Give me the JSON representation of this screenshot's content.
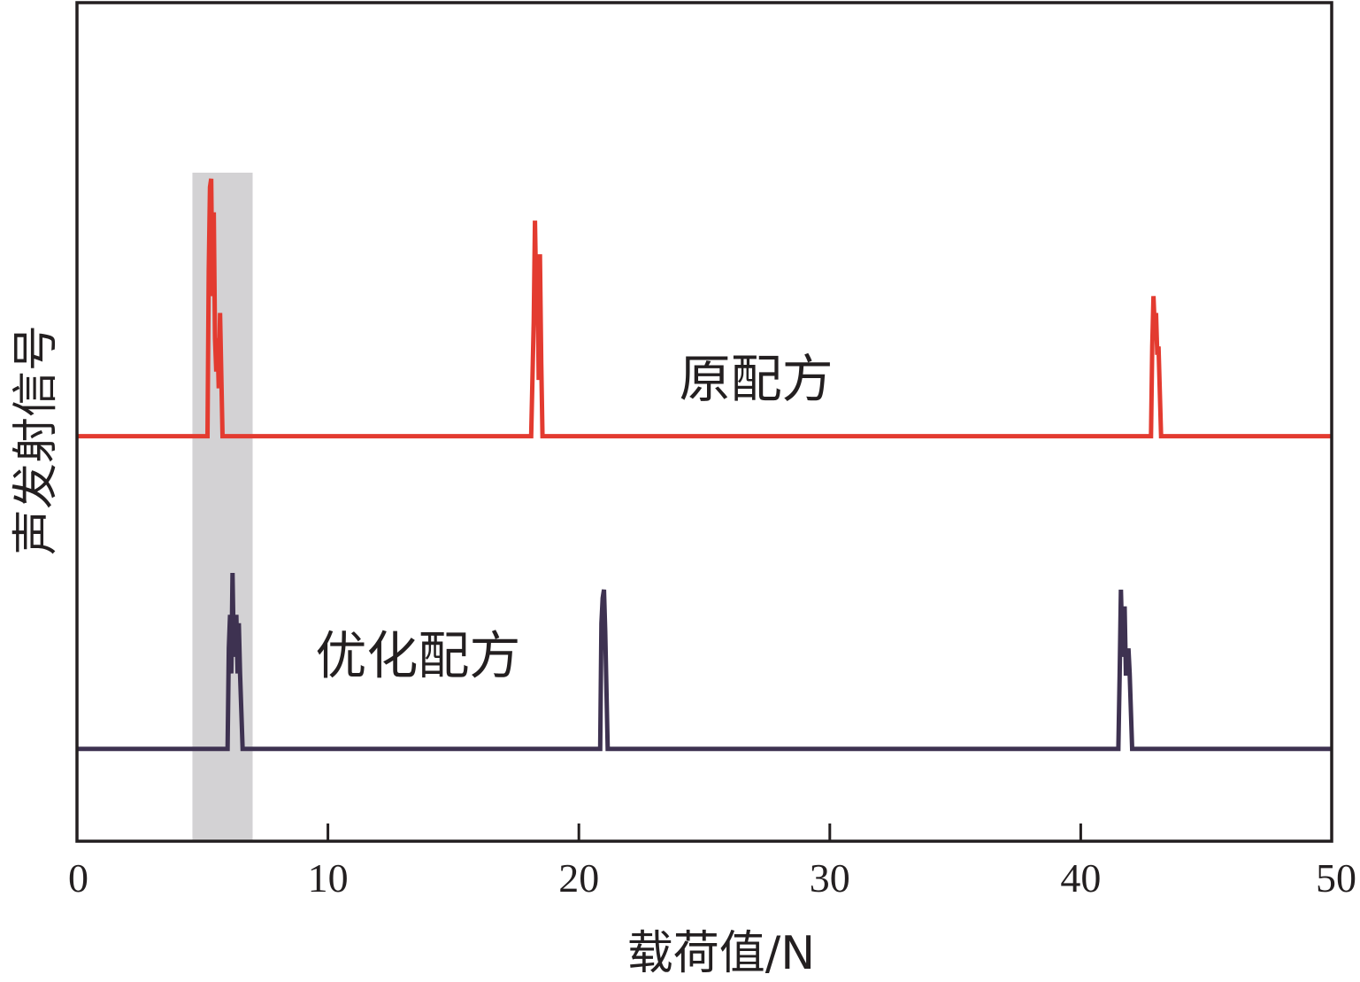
{
  "chart_data": {
    "type": "line",
    "title": "",
    "xlabel": "载荷值/N",
    "ylabel": "声发射信号",
    "xlim": [
      0,
      50
    ],
    "ylim": [
      0,
      1
    ],
    "xticks": [
      0,
      10,
      20,
      30,
      40,
      50
    ],
    "yticks": [],
    "grid": false,
    "legend": "none",
    "highlight_band": {
      "x": [
        4.6,
        7.0
      ],
      "color": "#d3d2d4"
    },
    "series": [
      {
        "name": "原配方",
        "color": "#e33b30",
        "baseline": 0.483,
        "label_at": [
          24,
          0.53
        ],
        "x": [
          0,
          5.2,
          5.25,
          5.3,
          5.35,
          5.4,
          5.45,
          5.5,
          5.55,
          5.6,
          5.65,
          5.7,
          5.8,
          5.85,
          18.1,
          18.2,
          18.25,
          18.3,
          18.35,
          18.4,
          18.45,
          18.5,
          18.55,
          18.65,
          42.8,
          42.85,
          42.9,
          42.95,
          43.0,
          43.05,
          43.1,
          43.2,
          43.25,
          50
        ],
        "y": [
          0.483,
          0.483,
          0.68,
          0.78,
          0.79,
          0.65,
          0.75,
          0.6,
          0.56,
          0.6,
          0.54,
          0.63,
          0.483,
          0.483,
          0.483,
          0.62,
          0.74,
          0.65,
          0.69,
          0.55,
          0.7,
          0.57,
          0.483,
          0.483,
          0.483,
          0.59,
          0.65,
          0.61,
          0.63,
          0.58,
          0.59,
          0.483,
          0.483,
          0.483
        ]
      },
      {
        "name": "优化配方",
        "color": "#3e3251",
        "baseline": 0.11,
        "label_at": [
          9.5,
          0.2
        ],
        "x": [
          0,
          6.0,
          6.05,
          6.1,
          6.15,
          6.2,
          6.25,
          6.3,
          6.35,
          6.4,
          6.45,
          6.5,
          6.6,
          6.65,
          20.85,
          20.9,
          20.95,
          21.0,
          21.05,
          21.15,
          21.2,
          21.25,
          41.5,
          41.55,
          41.6,
          41.65,
          41.7,
          41.75,
          41.8,
          41.85,
          41.9,
          41.95,
          42.05,
          42.1,
          50
        ],
        "y": [
          0.11,
          0.11,
          0.23,
          0.27,
          0.2,
          0.32,
          0.22,
          0.25,
          0.27,
          0.2,
          0.26,
          0.2,
          0.11,
          0.11,
          0.11,
          0.26,
          0.29,
          0.3,
          0.25,
          0.11,
          0.11,
          0.11,
          0.11,
          0.2,
          0.3,
          0.24,
          0.22,
          0.28,
          0.2,
          0.2,
          0.23,
          0.2,
          0.11,
          0.11,
          0.11
        ]
      }
    ]
  }
}
